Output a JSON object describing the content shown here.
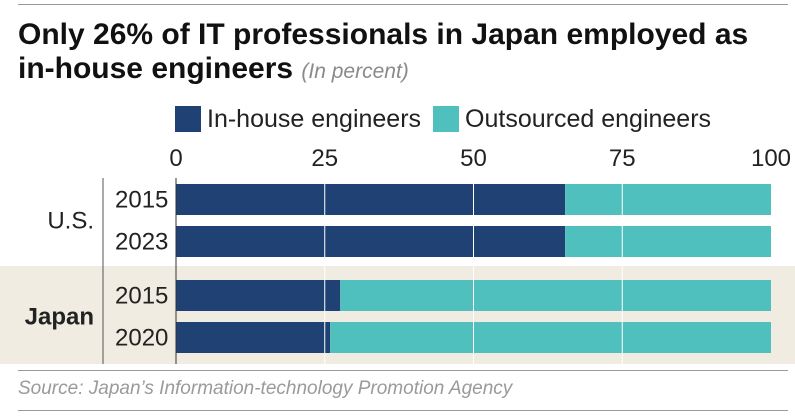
{
  "title": "Only 26% of IT professionals in Japan employed as in-house engineers",
  "subtitle": "(In percent)",
  "source": "Source: Japan’s Information-technology Promotion Agency",
  "colors": {
    "in_house": "#1f4173",
    "outsourced": "#4fc0bd",
    "japan_band": "#f1ece1",
    "gridline": "#ffffff"
  },
  "chart_data": {
    "type": "bar",
    "orientation": "horizontal",
    "stacked": true,
    "title": "Only 26% of IT professionals in Japan employed as in-house engineers",
    "subtitle": "(In percent)",
    "xlim": [
      0,
      100
    ],
    "xticks": [
      0,
      25,
      50,
      75,
      100
    ],
    "grid": true,
    "legend_position": "top",
    "groups": [
      {
        "label": "U.S.",
        "bold": false,
        "highlight": false,
        "rows": [
          {
            "category": "2015",
            "values": [
              65.4,
              34.6
            ]
          },
          {
            "category": "2023",
            "values": [
              65.4,
              34.6
            ]
          }
        ]
      },
      {
        "label": "Japan",
        "bold": true,
        "highlight": true,
        "rows": [
          {
            "category": "2015",
            "values": [
              27.6,
              72.4
            ]
          },
          {
            "category": "2020",
            "values": [
              25.9,
              74.1
            ]
          }
        ]
      }
    ],
    "series": [
      {
        "name": "In-house engineers",
        "color": "#1f4173"
      },
      {
        "name": "Outsourced engineers",
        "color": "#4fc0bd"
      }
    ]
  }
}
